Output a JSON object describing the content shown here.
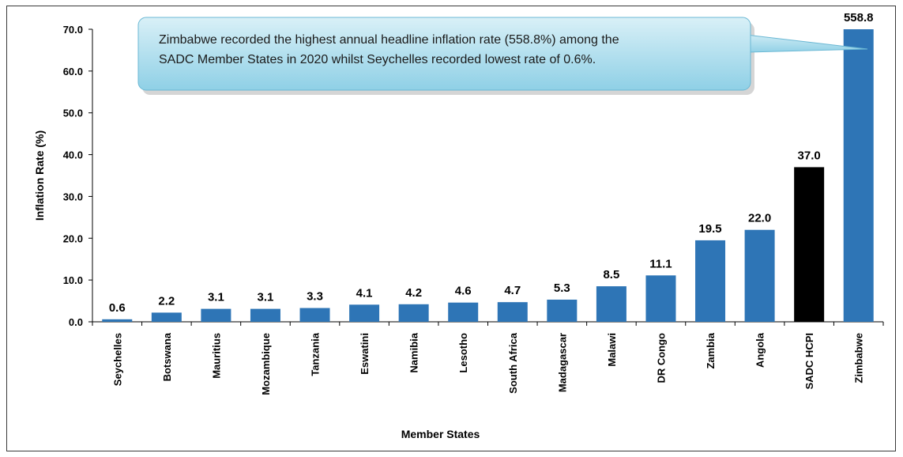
{
  "chart_data": {
    "type": "bar",
    "categories": [
      "Seychelles",
      "Botswana",
      "Mauritius",
      "Mozambique",
      "Tanzania",
      "Eswatini",
      "Namibia",
      "Lesotho",
      "South Africa",
      "Madagascar",
      "Malawi",
      "DR Congo",
      "Zambia",
      "Angola",
      "SADC HCPI",
      "Zimbabwe"
    ],
    "values": [
      0.6,
      2.2,
      3.1,
      3.1,
      3.3,
      4.1,
      4.2,
      4.6,
      4.7,
      5.3,
      8.5,
      11.1,
      19.5,
      22.0,
      37.0,
      558.8
    ],
    "value_labels": [
      "0.6",
      "2.2",
      "3.1",
      "3.1",
      "3.3",
      "4.1",
      "4.2",
      "4.6",
      "4.7",
      "5.3",
      "8.5",
      "11.1",
      "19.5",
      "22.0",
      "37.0",
      "558.8"
    ],
    "ylim": [
      0,
      70
    ],
    "clipped_at_axis_max": [
      "Zimbabwe"
    ],
    "yticks": [
      "0.0",
      "10.0",
      "20.0",
      "30.0",
      "40.0",
      "50.0",
      "60.0",
      "70.0"
    ],
    "xlabel": "Member States",
    "ylabel": "Inflation Rate (%)",
    "grid": false,
    "legend": "none",
    "colors": {
      "default": "#2e75b6",
      "highlight": "#000000"
    },
    "highlight_category": "SADC HCPI",
    "annotation": {
      "lines": [
        "Zimbabwe recorded the highest annual headline inflation rate (558.8%) among the",
        "SADC Member States in 2020 whilst Seychelles recorded lowest rate of 0.6%."
      ],
      "fill_top": "#d9f0f7",
      "fill_bottom": "#8fd0e6",
      "border": "#6bb8d4"
    }
  }
}
